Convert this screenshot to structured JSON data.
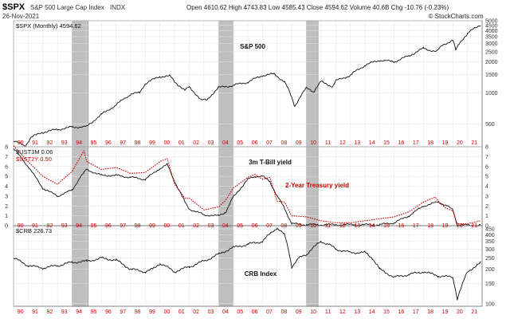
{
  "header": {
    "symbol": "$SPX",
    "name": "S&P 500 Large Cap Index",
    "exchange": "INDX",
    "date": "26-Nov-2021",
    "quote": "Open 4610.62  High 4743.83  Low 4585.43  Close 4594.62  Volume 40.6B  Chg -10.76 (-0.23%)",
    "credit": "© StockCharts.com"
  },
  "colors": {
    "black": "#111111",
    "red": "#cc0000",
    "recession": "#b4b4b4",
    "grid": "#e3e3e3"
  },
  "chart_data": [
    {
      "type": "line",
      "panel": "top",
      "title": "S&P 500",
      "scale": "log",
      "legend": "$SPX (Monthly) 4594.62",
      "ylim": [
        300,
        5000
      ],
      "yticks": [
        500,
        1000,
        1500,
        2000,
        2500,
        3000,
        3500,
        4000,
        4500,
        5000
      ],
      "ytick_labels": [
        "500",
        "1000",
        "1500",
        "2000",
        "2500",
        "3000",
        "3500",
        "4000",
        "4500",
        "5000"
      ],
      "series": [
        {
          "name": "$SPX",
          "x": [
            1990,
            1990.8,
            1991.2,
            1992,
            1993,
            1994,
            1995,
            1996,
            1997,
            1998,
            1998.6,
            1999,
            2000,
            2000.7,
            2001,
            2001.7,
            2002,
            2002.8,
            2003.2,
            2004,
            2005,
            2006,
            2007,
            2007.8,
            2008.5,
            2009.2,
            2010,
            2010.5,
            2011,
            2011.8,
            2012,
            2013,
            2014,
            2015,
            2016,
            2017,
            2018,
            2018.9,
            2019.3,
            2020,
            2020.2,
            2020.5,
            2021,
            2021.9
          ],
          "values": [
            340,
            305,
            370,
            415,
            440,
            465,
            470,
            615,
            760,
            970,
            1000,
            1230,
            1440,
            1450,
            1280,
            1050,
            1140,
            850,
            850,
            1120,
            1180,
            1270,
            1470,
            1520,
            1280,
            740,
            1110,
            1030,
            1280,
            1150,
            1300,
            1480,
            1850,
            2070,
            2000,
            2280,
            2700,
            2500,
            2900,
            3250,
            2580,
            3100,
            3750,
            4600
          ]
        }
      ]
    },
    {
      "type": "line",
      "panel": "middle",
      "title": "3m T-Bill yield",
      "ylim": [
        0,
        8
      ],
      "yticks": [
        0,
        1,
        2,
        3,
        4,
        5,
        6,
        7,
        8
      ],
      "ytick_labels": [
        "0",
        "1",
        "2",
        "3",
        "4",
        "5",
        "6",
        "7",
        "8"
      ],
      "series": [
        {
          "name": "$UST3M",
          "legend": "$UST3M 0.06",
          "x": [
            1990,
            1991,
            1992,
            1993,
            1994,
            1994.5,
            1995,
            1996,
            1997,
            1998,
            1999,
            2000,
            2000.5,
            2001,
            2001.7,
            2002,
            2003,
            2004,
            2004.5,
            2005,
            2006,
            2006.5,
            2007,
            2007.5,
            2008,
            2008.5,
            2009,
            2010,
            2015,
            2016,
            2017,
            2018,
            2019,
            2019.5,
            2020,
            2020.3,
            2021,
            2021.9
          ],
          "values": [
            7.8,
            6.0,
            3.8,
            3.0,
            3.6,
            4.8,
            5.7,
            5.1,
            5.1,
            4.9,
            4.7,
            5.8,
            6.2,
            4.5,
            2.4,
            1.7,
            1.1,
            1.0,
            1.4,
            2.9,
            4.7,
            5.0,
            5.0,
            4.5,
            3.0,
            1.8,
            0.2,
            0.1,
            0.1,
            0.3,
            1.0,
            2.0,
            2.4,
            2.1,
            1.6,
            0.1,
            0.05,
            0.06
          ]
        },
        {
          "name": "$UST2Y",
          "legend": "$UST2Y 0.50",
          "x": [
            1990,
            1991,
            1992,
            1993,
            1994,
            1994.8,
            1995,
            1996,
            1997,
            1998,
            1999,
            2000,
            2000.5,
            2001,
            2001.7,
            2002,
            2003,
            2004,
            2004.5,
            2005,
            2006,
            2006.5,
            2007,
            2007.5,
            2008,
            2008.5,
            2009,
            2010,
            2011,
            2012,
            2013,
            2014,
            2015,
            2016,
            2017,
            2018,
            2018.8,
            2019,
            2019.5,
            2020,
            2020.3,
            2021,
            2021.9
          ],
          "values": [
            8.1,
            6.5,
            5.0,
            4.2,
            5.5,
            7.6,
            6.5,
            5.7,
            5.9,
            5.3,
            5.4,
            6.5,
            6.8,
            4.2,
            2.8,
            2.8,
            1.6,
            1.9,
            2.6,
            3.8,
            4.9,
            5.2,
            4.7,
            4.9,
            2.5,
            2.4,
            1.0,
            0.9,
            0.5,
            0.3,
            0.3,
            0.5,
            0.7,
            0.9,
            1.4,
            2.4,
            2.9,
            2.5,
            1.8,
            1.5,
            0.2,
            0.2,
            0.5
          ]
        }
      ]
    },
    {
      "type": "line",
      "panel": "bottom",
      "title": "CRB Index",
      "scale": "log",
      "legend": "$CRB 226.73",
      "ylim": [
        95,
        480
      ],
      "yticks": [
        100,
        150,
        200,
        250,
        300,
        350,
        400,
        450
      ],
      "ytick_labels": [
        "100",
        "150",
        "200",
        "250",
        "300",
        "350",
        "400",
        "450"
      ],
      "series": [
        {
          "name": "$CRB",
          "x": [
            1990,
            1991,
            1992,
            1993,
            1994,
            1995,
            1996,
            1997,
            1998,
            1999,
            1999.5,
            2000,
            2001,
            2002,
            2003,
            2004,
            2005,
            2006,
            2007,
            2008,
            2008.5,
            2009,
            2009.5,
            2010,
            2011,
            2011.5,
            2012,
            2013,
            2014,
            2014.5,
            2015,
            2016,
            2017,
            2018,
            2019,
            2020,
            2020.3,
            2020.6,
            2021,
            2021.9
          ],
          "values": [
            250,
            215,
            205,
            215,
            230,
            235,
            250,
            240,
            200,
            190,
            200,
            225,
            190,
            210,
            235,
            270,
            310,
            330,
            350,
            460,
            400,
            210,
            250,
            270,
            350,
            330,
            300,
            280,
            280,
            250,
            200,
            170,
            180,
            190,
            175,
            170,
            110,
            140,
            190,
            227
          ]
        }
      ]
    }
  ],
  "x_axis": {
    "labels": [
      "90",
      "91",
      "92",
      "93",
      "94",
      "95",
      "96",
      "97",
      "98",
      "99",
      "00",
      "01",
      "02",
      "03",
      "04",
      "05",
      "06",
      "07",
      "08",
      "09",
      "10",
      "11",
      "12",
      "13",
      "14",
      "15",
      "16",
      "17",
      "18",
      "19",
      "20",
      "21"
    ]
  },
  "recessions": [
    [
      1994.0,
      1995.1
    ],
    [
      2004.0,
      2005.0
    ],
    [
      2010.0,
      2010.8
    ]
  ],
  "annotations": {
    "treasury": "2-Year Treasury yield"
  }
}
